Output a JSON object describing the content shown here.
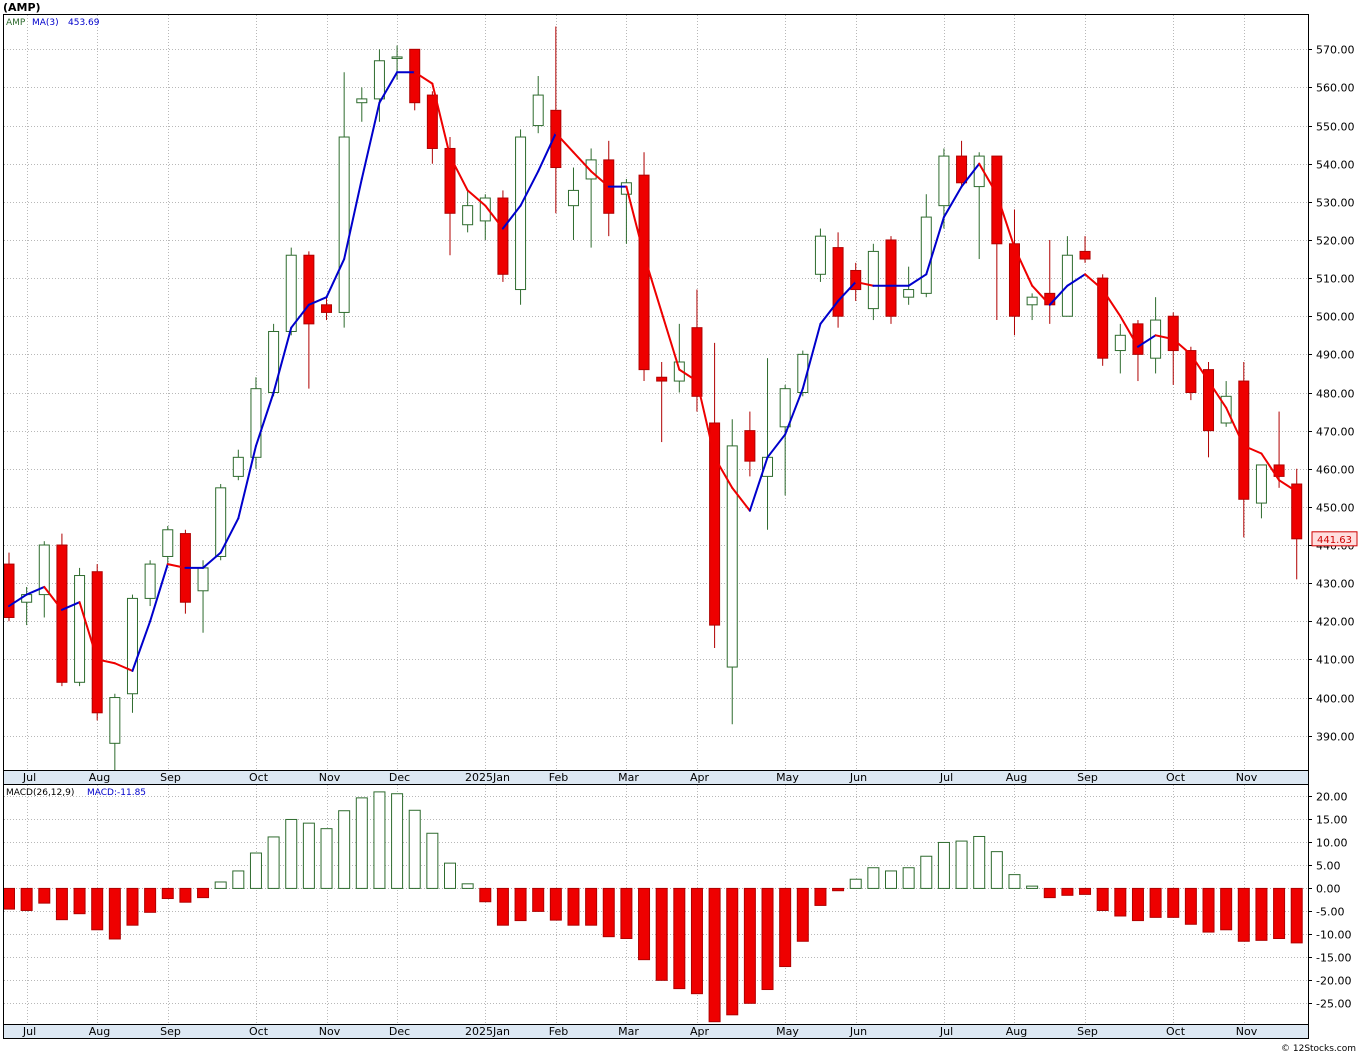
{
  "ticker_label": "(AMP)",
  "legend_symbol": "AMP",
  "legend_ma_label": "MA(3)",
  "legend_ma_value": "453.69",
  "last_price_label": "441.63",
  "macd_label": "MACD(26,12,9)",
  "macd_value_label": "MACD:-11.85",
  "watermark": "© 12Stocks.com",
  "colors": {
    "up_stroke": "#2e6b2e",
    "down_fill": "#ee0000",
    "ma_up": "#0000cc",
    "ma_down": "#ee0000",
    "grid": "#b8b8b8",
    "axis_strip": "#dde8f3",
    "price_tag_bg": "#ffdede",
    "price_tag_text": "#cc0000"
  },
  "chart_data": [
    {
      "type": "candlestick",
      "title": "",
      "y_ticks": [
        390,
        400,
        410,
        420,
        430,
        440,
        450,
        460,
        470,
        480,
        490,
        500,
        510,
        520,
        530,
        540,
        550,
        560,
        570
      ],
      "ylim": [
        381,
        579
      ],
      "grid": true,
      "x_tick_labels": [
        "Jul",
        "Aug",
        "Sep",
        "Oct",
        "Nov",
        "Dec",
        "2025Jan",
        "Feb",
        "Mar",
        "Apr",
        "May",
        "Jun",
        "Jul",
        "Aug",
        "Sep",
        "Oct",
        "Nov"
      ],
      "x_tick_weeks": [
        1,
        5,
        9,
        14,
        18,
        22,
        27,
        31,
        35,
        39,
        44,
        48,
        53,
        57,
        61,
        66,
        70
      ],
      "candles": [
        {
          "o": 435,
          "h": 438,
          "l": 420,
          "c": 421
        },
        {
          "o": 425,
          "h": 429,
          "l": 419,
          "c": 427
        },
        {
          "o": 427,
          "h": 441,
          "l": 421,
          "c": 440
        },
        {
          "o": 440,
          "h": 443,
          "l": 403,
          "c": 404
        },
        {
          "o": 404,
          "h": 434,
          "l": 403,
          "c": 432
        },
        {
          "o": 433,
          "h": 435,
          "l": 394,
          "c": 396
        },
        {
          "o": 388,
          "h": 401,
          "l": 381,
          "c": 400
        },
        {
          "o": 401,
          "h": 427,
          "l": 396,
          "c": 426
        },
        {
          "o": 426,
          "h": 436,
          "l": 424,
          "c": 435
        },
        {
          "o": 437,
          "h": 445,
          "l": 435,
          "c": 444
        },
        {
          "o": 443,
          "h": 444,
          "l": 422,
          "c": 425
        },
        {
          "o": 428,
          "h": 436,
          "l": 417,
          "c": 434
        },
        {
          "o": 437,
          "h": 456,
          "l": 436,
          "c": 455
        },
        {
          "o": 458,
          "h": 465,
          "l": 457,
          "c": 463
        },
        {
          "o": 463,
          "h": 484,
          "l": 460,
          "c": 481
        },
        {
          "o": 480,
          "h": 498,
          "l": 479,
          "c": 496
        },
        {
          "o": 496,
          "h": 518,
          "l": 495,
          "c": 516
        },
        {
          "o": 516,
          "h": 517,
          "l": 481,
          "c": 498
        },
        {
          "o": 503,
          "h": 505,
          "l": 499,
          "c": 501
        },
        {
          "o": 501,
          "h": 564,
          "l": 497,
          "c": 547
        },
        {
          "o": 556,
          "h": 560,
          "l": 551,
          "c": 557
        },
        {
          "o": 557,
          "h": 570,
          "l": 551,
          "c": 567
        },
        {
          "o": 568,
          "h": 571,
          "l": 562,
          "c": 568
        },
        {
          "o": 570,
          "h": 570,
          "l": 554,
          "c": 556
        },
        {
          "o": 558,
          "h": 559,
          "l": 540,
          "c": 544
        },
        {
          "o": 544,
          "h": 547,
          "l": 516,
          "c": 527
        },
        {
          "o": 524,
          "h": 533,
          "l": 522,
          "c": 529
        },
        {
          "o": 525,
          "h": 532,
          "l": 520,
          "c": 531
        },
        {
          "o": 531,
          "h": 533,
          "l": 509,
          "c": 511
        },
        {
          "o": 507,
          "h": 549,
          "l": 503,
          "c": 547
        },
        {
          "o": 550,
          "h": 563,
          "l": 548,
          "c": 558
        },
        {
          "o": 554,
          "h": 576,
          "l": 527,
          "c": 539
        },
        {
          "o": 529,
          "h": 539,
          "l": 520,
          "c": 533
        },
        {
          "o": 536,
          "h": 544,
          "l": 518,
          "c": 541
        },
        {
          "o": 541,
          "h": 546,
          "l": 521,
          "c": 527
        },
        {
          "o": 532,
          "h": 536,
          "l": 519,
          "c": 535
        },
        {
          "o": 537,
          "h": 543,
          "l": 483,
          "c": 486
        },
        {
          "o": 484,
          "h": 488,
          "l": 467,
          "c": 483
        },
        {
          "o": 483,
          "h": 498,
          "l": 480,
          "c": 488
        },
        {
          "o": 497,
          "h": 507,
          "l": 475,
          "c": 479
        },
        {
          "o": 472,
          "h": 493,
          "l": 413,
          "c": 419
        },
        {
          "o": 408,
          "h": 473,
          "l": 393,
          "c": 466
        },
        {
          "o": 470,
          "h": 475,
          "l": 458,
          "c": 462
        },
        {
          "o": 458,
          "h": 489,
          "l": 444,
          "c": 463
        },
        {
          "o": 471,
          "h": 482,
          "l": 453,
          "c": 481
        },
        {
          "o": 480,
          "h": 491,
          "l": 479,
          "c": 490
        },
        {
          "o": 511,
          "h": 523,
          "l": 509,
          "c": 521
        },
        {
          "o": 518,
          "h": 522,
          "l": 497,
          "c": 500
        },
        {
          "o": 512,
          "h": 514,
          "l": 504,
          "c": 507
        },
        {
          "o": 502,
          "h": 519,
          "l": 499,
          "c": 517
        },
        {
          "o": 520,
          "h": 521,
          "l": 498,
          "c": 500
        },
        {
          "o": 505,
          "h": 513,
          "l": 503,
          "c": 507
        },
        {
          "o": 506,
          "h": 532,
          "l": 505,
          "c": 526
        },
        {
          "o": 529,
          "h": 544,
          "l": 523,
          "c": 542
        },
        {
          "o": 542,
          "h": 546,
          "l": 534,
          "c": 535
        },
        {
          "o": 534,
          "h": 543,
          "l": 515,
          "c": 542
        },
        {
          "o": 542,
          "h": 542,
          "l": 499,
          "c": 519
        },
        {
          "o": 519,
          "h": 528,
          "l": 495,
          "c": 500
        },
        {
          "o": 503,
          "h": 506,
          "l": 499,
          "c": 505
        },
        {
          "o": 506,
          "h": 520,
          "l": 498,
          "c": 503
        },
        {
          "o": 500,
          "h": 521,
          "l": 500,
          "c": 516
        },
        {
          "o": 517,
          "h": 521,
          "l": 514,
          "c": 515
        },
        {
          "o": 510,
          "h": 511,
          "l": 487,
          "c": 489
        },
        {
          "o": 491,
          "h": 498,
          "l": 485,
          "c": 495
        },
        {
          "o": 498,
          "h": 499,
          "l": 483,
          "c": 490
        },
        {
          "o": 489,
          "h": 505,
          "l": 485,
          "c": 499
        },
        {
          "o": 500,
          "h": 501,
          "l": 482,
          "c": 491
        },
        {
          "o": 491,
          "h": 492,
          "l": 478,
          "c": 480
        },
        {
          "o": 486,
          "h": 488,
          "l": 463,
          "c": 470
        },
        {
          "o": 472,
          "h": 483,
          "l": 471,
          "c": 479
        },
        {
          "o": 483,
          "h": 488,
          "l": 442,
          "c": 452
        },
        {
          "o": 451,
          "h": 461,
          "l": 447,
          "c": 461
        },
        {
          "o": 461,
          "h": 475,
          "l": 455,
          "c": 458
        },
        {
          "o": 456,
          "h": 460,
          "l": 431,
          "c": 441.63
        }
      ],
      "ma3": [
        424,
        427,
        429,
        423,
        425,
        410,
        409,
        407,
        420,
        435,
        434,
        434,
        438,
        447,
        466,
        480,
        497,
        503,
        505,
        515,
        536,
        556,
        564,
        564,
        561,
        542,
        533,
        529,
        523,
        529,
        538,
        548,
        543,
        538,
        534,
        534,
        516,
        501,
        486,
        483,
        463,
        455,
        449,
        463,
        469,
        481,
        498,
        504,
        509,
        508,
        508,
        508,
        511,
        526,
        534,
        540,
        532,
        518,
        508,
        503,
        508,
        511,
        507,
        500,
        492,
        495,
        494,
        490,
        483,
        476,
        466,
        464,
        457,
        454
      ]
    },
    {
      "type": "bar",
      "title": "",
      "y_ticks": [
        -25,
        -20,
        -15,
        -10,
        -5,
        0,
        5,
        10,
        15,
        20
      ],
      "y_tick_labels": [
        "-25.00",
        "-20.00",
        "-15.00",
        "-10.00",
        "-5.00",
        "0.00",
        "5.00",
        "10.00",
        "15.00",
        "20.00"
      ],
      "ylim": [
        -29.5,
        22.5
      ],
      "grid": true,
      "x_tick_labels": [
        "Jul",
        "Aug",
        "Sep",
        "Oct",
        "Nov",
        "Dec",
        "2025Jan",
        "Feb",
        "Mar",
        "Apr",
        "May",
        "Jun",
        "Jul",
        "Aug",
        "Sep",
        "Oct",
        "Nov"
      ],
      "series": [
        {
          "values": [
            -4.5,
            -4.8,
            -3.2,
            -6.8,
            -5.5,
            -9.0,
            -11.0,
            -8.0,
            -5.2,
            -2.2,
            -3.0,
            -2.0,
            1.4,
            3.8,
            7.7,
            11.2,
            15.0,
            14.2,
            13.0,
            16.9,
            19.7,
            21.0,
            20.6,
            17.0,
            12.0,
            5.5,
            1.0,
            -2.9,
            -8.0,
            -7.0,
            -5.0,
            -6.9,
            -8.0,
            -8.0,
            -10.5,
            -10.9,
            -15.5,
            -20.0,
            -21.8,
            -22.9,
            -29.0,
            -27.5,
            -25.0,
            -22.0,
            -17.0,
            -11.5,
            -3.7,
            -0.5,
            2.0,
            4.5,
            3.8,
            4.5,
            7.0,
            10.0,
            10.3,
            11.3,
            8.0,
            3.0,
            0.5,
            -2.0,
            -1.5,
            -1.3,
            -4.8,
            -6.0,
            -7.0,
            -6.3,
            -6.3,
            -7.8,
            -9.5,
            -9.0,
            -11.5,
            -11.3,
            -10.9,
            -11.85
          ]
        }
      ]
    }
  ]
}
